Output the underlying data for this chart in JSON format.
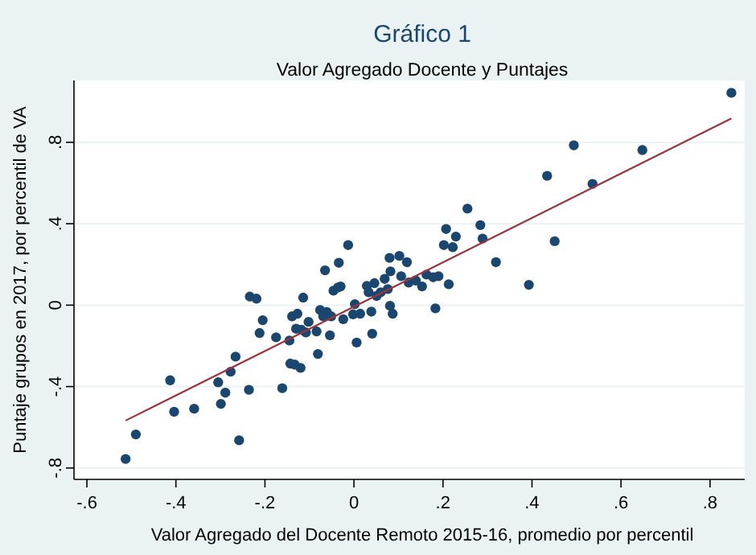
{
  "chart_data": {
    "type": "scatter",
    "title": "Gráfico 1",
    "subtitle": "Valor Agregado Docente y Puntajes",
    "xlabel": "Valor Agregado del Docente Remoto 2015-16, promedio por percentil",
    "ylabel": "Puntaje grupos en 2017, por percentil de VA",
    "xlim": [
      -0.629,
      0.878
    ],
    "ylim": [
      -0.856,
      1.104
    ],
    "xticks": [
      {
        "value": -0.6,
        "label": "-.6"
      },
      {
        "value": -0.4,
        "label": "-.4"
      },
      {
        "value": -0.2,
        "label": "-.2"
      },
      0,
      {
        "value": 0.2,
        "label": ".2"
      },
      {
        "value": 0.4,
        "label": ".4"
      },
      {
        "value": 0.6,
        "label": ".6"
      },
      {
        "value": 0.8,
        "label": ".8"
      }
    ],
    "yticks": [
      {
        "value": -0.8,
        "label": "-.8"
      },
      {
        "value": -0.4,
        "label": "-.4"
      },
      0,
      {
        "value": 0.4,
        "label": ".4"
      },
      {
        "value": 0.8,
        "label": ".8"
      }
    ],
    "grid": "y",
    "series": [
      {
        "marker": "circle",
        "color": "#1a476f",
        "x": [
          -0.513,
          -0.49,
          -0.413,
          -0.404,
          -0.359,
          -0.305,
          -0.299,
          -0.289,
          -0.277,
          -0.266,
          -0.258,
          -0.236,
          -0.234,
          -0.219,
          -0.212,
          -0.205,
          -0.175,
          -0.161,
          -0.145,
          -0.143,
          -0.139,
          -0.133,
          -0.13,
          -0.127,
          -0.12,
          -0.118,
          -0.114,
          -0.108,
          -0.102,
          -0.084,
          -0.081,
          -0.076,
          -0.069,
          -0.065,
          -0.061,
          -0.054,
          -0.051,
          -0.046,
          -0.036,
          -0.034,
          -0.03,
          -0.024,
          -0.013,
          -0.002,
          0.002,
          0.006,
          0.014,
          0.029,
          0.033,
          0.039,
          0.041,
          0.046,
          0.051,
          0.06,
          0.069,
          0.076,
          0.08,
          0.082,
          0.081,
          0.087,
          0.102,
          0.106,
          0.119,
          0.123,
          0.139,
          0.153,
          0.163,
          0.178,
          0.183,
          0.19,
          0.202,
          0.207,
          0.213,
          0.222,
          0.229,
          0.255,
          0.284,
          0.289,
          0.319,
          0.393,
          0.434,
          0.451,
          0.494,
          0.536,
          0.648,
          0.848
        ],
        "values": [
          -0.756,
          -0.635,
          -0.369,
          -0.524,
          -0.509,
          -0.379,
          -0.485,
          -0.43,
          -0.327,
          -0.253,
          -0.664,
          -0.416,
          0.042,
          0.032,
          -0.137,
          -0.074,
          -0.158,
          -0.408,
          -0.174,
          -0.287,
          -0.055,
          -0.292,
          -0.116,
          -0.042,
          -0.308,
          -0.121,
          0.037,
          -0.134,
          -0.082,
          -0.129,
          -0.24,
          -0.024,
          -0.055,
          0.171,
          -0.034,
          -0.148,
          -0.055,
          0.071,
          0.087,
          0.208,
          0.092,
          -0.069,
          0.295,
          -0.045,
          0.005,
          -0.184,
          -0.042,
          0.095,
          0.063,
          -0.032,
          -0.14,
          0.108,
          0.045,
          0.063,
          0.129,
          0.079,
          0.232,
          0.166,
          -0.003,
          -0.042,
          0.242,
          0.142,
          0.211,
          0.111,
          0.121,
          0.092,
          0.15,
          0.137,
          -0.016,
          0.142,
          0.295,
          0.374,
          0.103,
          0.285,
          0.337,
          0.474,
          0.393,
          0.327,
          0.211,
          0.1,
          0.635,
          0.314,
          0.785,
          0.596,
          0.762,
          1.043
        ]
      },
      {
        "type": "line",
        "color": "#a0323c",
        "x": [
          -0.513,
          0.848
        ],
        "values": [
          -0.567,
          0.917
        ]
      }
    ]
  }
}
